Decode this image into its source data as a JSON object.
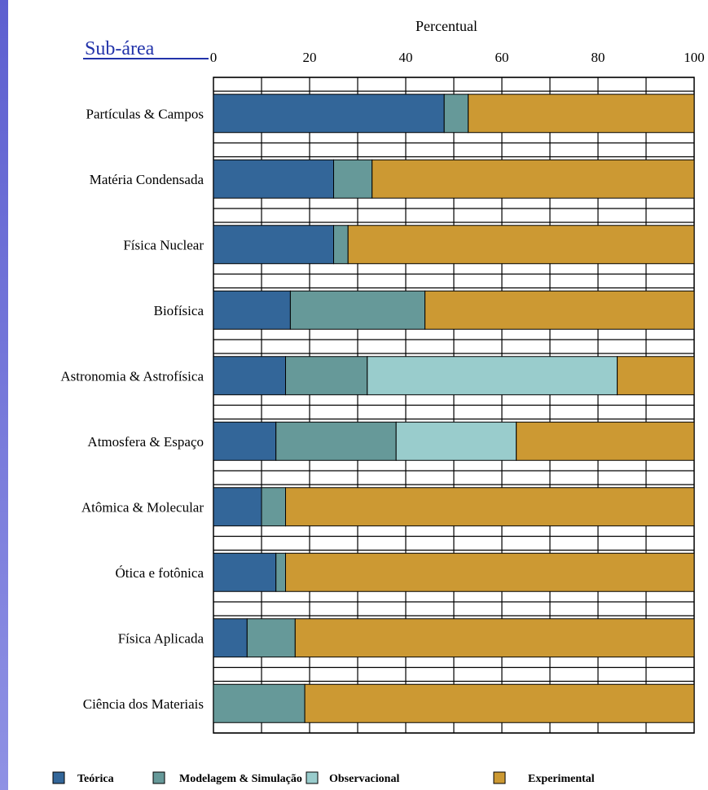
{
  "chart_data": {
    "type": "bar",
    "orientation": "horizontal",
    "stacked": true,
    "title": "",
    "xlabel": "Percentual",
    "ylabel": "Sub-área",
    "xlim": [
      0,
      100
    ],
    "xticks": [
      "0",
      "20",
      "40",
      "60",
      "80",
      "100"
    ],
    "categories": [
      "Partículas & Campos",
      "Matéria Condensada",
      "Física Nuclear",
      "Biofísica",
      "Astronomia & Astrofísica",
      "Atmosfera & Espaço",
      "Atômica & Molecular",
      "Ótica e fotônica",
      "Física Aplicada",
      "Ciência dos Materiais"
    ],
    "series": [
      {
        "name": "Teórica",
        "color": "#336699",
        "values": [
          48,
          25,
          25,
          16,
          15,
          13,
          10,
          13,
          7,
          0
        ]
      },
      {
        "name": "Modelagem & Simulação",
        "color": "#669999",
        "values": [
          5,
          8,
          3,
          28,
          17,
          25,
          5,
          2,
          10,
          19
        ]
      },
      {
        "name": "Observacional",
        "color": "#99cccc",
        "values": [
          0,
          0,
          0,
          0,
          52,
          25,
          0,
          0,
          0,
          0
        ]
      },
      {
        "name": "Experimental",
        "color": "#cc9933",
        "values": [
          47,
          67,
          72,
          56,
          16,
          37,
          85,
          85,
          83,
          81
        ]
      }
    ],
    "grid": true,
    "legend": "bottom"
  }
}
